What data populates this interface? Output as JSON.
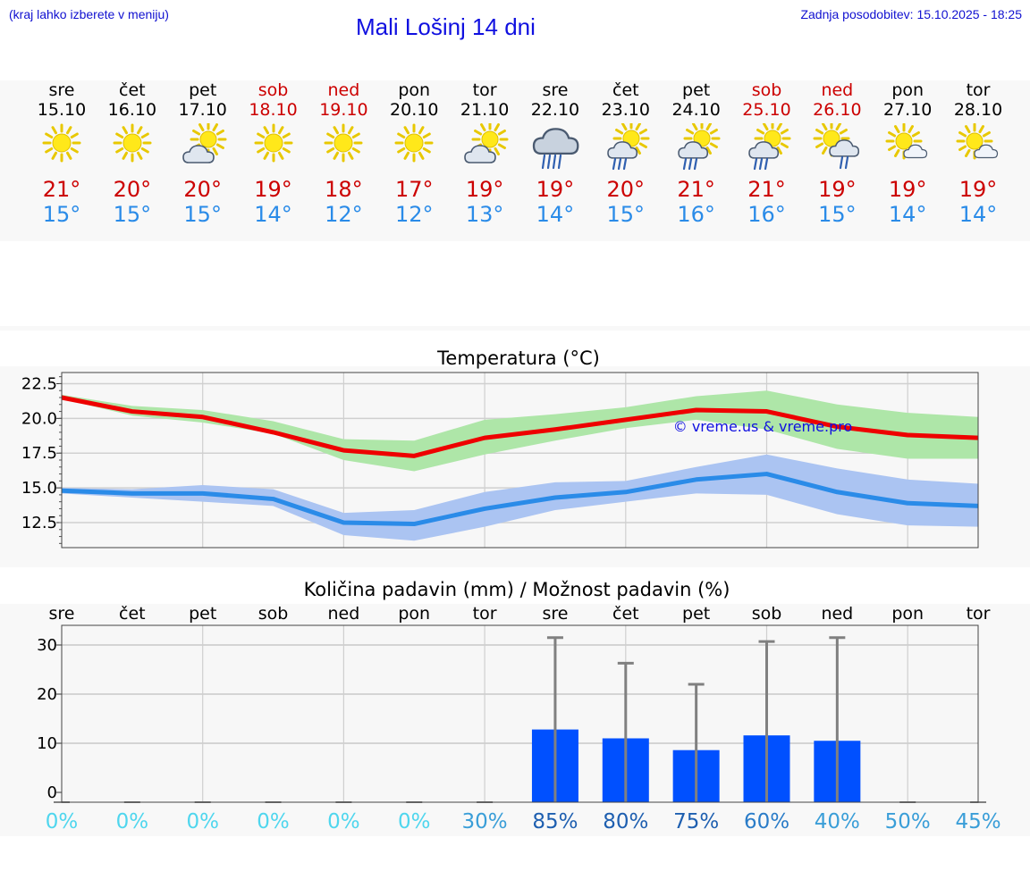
{
  "header": {
    "left_note": "(kraj lahko izberete v meniju)",
    "title": "Mali Lošinj 14 dni",
    "updated": "Zadnja posodobitev: 15.10.2025 - 18:25"
  },
  "days": [
    {
      "name": "sre",
      "date": "15.10",
      "weekend": false,
      "icon": "sun-icon",
      "tmax": "21°",
      "tmin": "15°"
    },
    {
      "name": "čet",
      "date": "16.10",
      "weekend": false,
      "icon": "sun-icon",
      "tmax": "20°",
      "tmin": "15°"
    },
    {
      "name": "pet",
      "date": "17.10",
      "weekend": false,
      "icon": "sun-cloud-icon",
      "tmax": "20°",
      "tmin": "15°"
    },
    {
      "name": "sob",
      "date": "18.10",
      "weekend": true,
      "icon": "sun-icon",
      "tmax": "19°",
      "tmin": "14°"
    },
    {
      "name": "ned",
      "date": "19.10",
      "weekend": true,
      "icon": "sun-icon",
      "tmax": "18°",
      "tmin": "12°"
    },
    {
      "name": "pon",
      "date": "20.10",
      "weekend": false,
      "icon": "sun-icon",
      "tmax": "17°",
      "tmin": "12°"
    },
    {
      "name": "tor",
      "date": "21.10",
      "weekend": false,
      "icon": "sun-cloud-icon",
      "tmax": "19°",
      "tmin": "13°"
    },
    {
      "name": "sre",
      "date": "22.10",
      "weekend": false,
      "icon": "heavy-rain-cloud-icon",
      "tmax": "19°",
      "tmin": "14°"
    },
    {
      "name": "čet",
      "date": "23.10",
      "weekend": false,
      "icon": "sun-cloud-rain-icon",
      "tmax": "20°",
      "tmin": "15°"
    },
    {
      "name": "pet",
      "date": "24.10",
      "weekend": false,
      "icon": "sun-cloud-rain-icon",
      "tmax": "21°",
      "tmin": "16°"
    },
    {
      "name": "sob",
      "date": "25.10",
      "weekend": true,
      "icon": "sun-cloud-rain-icon",
      "tmax": "21°",
      "tmin": "16°"
    },
    {
      "name": "ned",
      "date": "26.10",
      "weekend": true,
      "icon": "sun-cloud-rain-right-icon",
      "tmax": "19°",
      "tmin": "15°"
    },
    {
      "name": "pon",
      "date": "27.10",
      "weekend": false,
      "icon": "sun-small-cloud-icon",
      "tmax": "19°",
      "tmin": "14°"
    },
    {
      "name": "tor",
      "date": "28.10",
      "weekend": false,
      "icon": "sun-small-cloud-icon",
      "tmax": "19°",
      "tmin": "14°"
    }
  ],
  "colors": {
    "max_line": "#ee0000",
    "max_band": "#aee6a8",
    "min_line": "#2a8be8",
    "min_band": "#abc4f2",
    "precip_bar": "#0050ff",
    "error_bar": "#808080",
    "max_text": "#cc0000",
    "min_text": "#2a8be8"
  },
  "chart_data": [
    {
      "type": "line",
      "title": "Temperatura (°C)",
      "watermark": "© vreme.us & vreme.pro",
      "ylim": [
        10.7,
        23.3
      ],
      "yticks": [
        "22.5",
        "20.0",
        "17.5",
        "15.0",
        "12.5"
      ],
      "grid": true,
      "x": [
        "15.10",
        "16.10",
        "17.10",
        "18.10",
        "19.10",
        "20.10",
        "21.10",
        "22.10",
        "23.10",
        "24.10",
        "25.10",
        "26.10",
        "27.10",
        "28.10"
      ],
      "series": [
        {
          "key": "max",
          "values": [
            21.5,
            20.5,
            20.1,
            19.0,
            17.7,
            17.3,
            18.6,
            19.2,
            19.9,
            20.6,
            20.5,
            19.4,
            18.8,
            18.6
          ],
          "band_low": [
            21.4,
            20.2,
            19.7,
            18.9,
            17.0,
            16.2,
            17.4,
            18.4,
            19.3,
            19.9,
            19.2,
            17.8,
            17.1,
            17.1
          ],
          "band_high": [
            21.7,
            20.9,
            20.6,
            19.8,
            18.5,
            18.4,
            19.9,
            20.3,
            20.8,
            21.6,
            22.0,
            21.0,
            20.4,
            20.1
          ]
        },
        {
          "key": "min",
          "values": [
            14.8,
            14.6,
            14.6,
            14.2,
            12.5,
            12.4,
            13.5,
            14.3,
            14.7,
            15.6,
            16.0,
            14.7,
            13.9,
            13.7
          ],
          "band_low": [
            14.6,
            14.3,
            14.0,
            13.7,
            11.6,
            11.2,
            12.2,
            13.4,
            14.0,
            14.6,
            14.5,
            13.1,
            12.3,
            12.2
          ],
          "band_high": [
            15.0,
            14.9,
            15.2,
            14.9,
            13.2,
            13.4,
            14.7,
            15.4,
            15.5,
            16.5,
            17.4,
            16.4,
            15.6,
            15.3
          ]
        }
      ]
    },
    {
      "type": "bar",
      "title": "Količina padavin (mm) / Možnost padavin (%)",
      "ylim": [
        -2,
        34
      ],
      "yticks": [
        "30",
        "20",
        "10",
        "0"
      ],
      "grid": true,
      "categories": [
        "sre",
        "čet",
        "pet",
        "sob",
        "ned",
        "pon",
        "tor",
        "sre",
        "čet",
        "pet",
        "sob",
        "ned",
        "pon",
        "tor"
      ],
      "values": [
        0,
        0,
        0,
        0,
        0,
        0,
        0,
        12.8,
        11.0,
        8.6,
        11.6,
        10.5,
        0,
        0
      ],
      "error_max": [
        0,
        0,
        0,
        0,
        0,
        0,
        0,
        31.5,
        26.3,
        22.0,
        30.7,
        31.5,
        0,
        0
      ],
      "probability": [
        "0%",
        "0%",
        "0%",
        "0%",
        "0%",
        "0%",
        "30%",
        "85%",
        "80%",
        "75%",
        "60%",
        "40%",
        "50%",
        "45%"
      ],
      "probability_colors": [
        "#4fd6ee",
        "#4fd6ee",
        "#4fd6ee",
        "#4fd6ee",
        "#4fd6ee",
        "#4fd6ee",
        "#3a9ed8",
        "#1e5fb0",
        "#1e5fb0",
        "#1e5fb0",
        "#2a7cc8",
        "#3a9ed8",
        "#3a9ed8",
        "#3a9ed8"
      ]
    }
  ]
}
